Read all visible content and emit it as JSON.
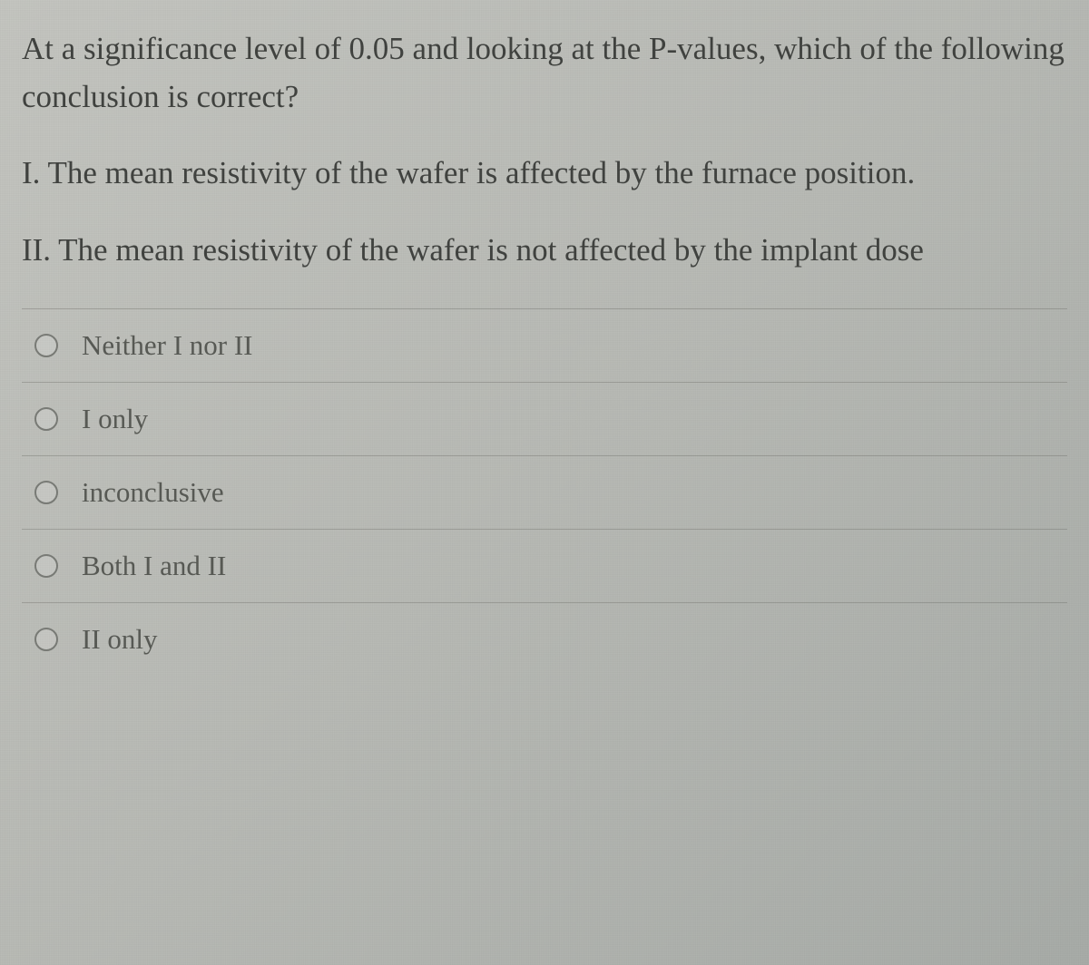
{
  "question": {
    "stem": "At a significance level of 0.05 and looking at the P-values, which of the following conclusion is correct?",
    "statement1": "I. The mean resistivity of the wafer is affected by the furnace position.",
    "statement2": "II. The mean resistivity of the wafer is not affected by the implant dose"
  },
  "options": [
    {
      "label": "Neither I nor II"
    },
    {
      "label": "I only"
    },
    {
      "label": "inconclusive"
    },
    {
      "label": "Both I and II"
    },
    {
      "label": "II only"
    }
  ],
  "colors": {
    "text": "#414340",
    "option_text": "#585a55",
    "divider": "rgba(100,100,95,0.35)",
    "radio_border": "#7a7c77",
    "bg_top": "#c4c5c0",
    "bg_bottom": "#a8aca8"
  },
  "typography": {
    "question_fontsize": 35,
    "option_fontsize": 31,
    "font_family": "serif"
  }
}
